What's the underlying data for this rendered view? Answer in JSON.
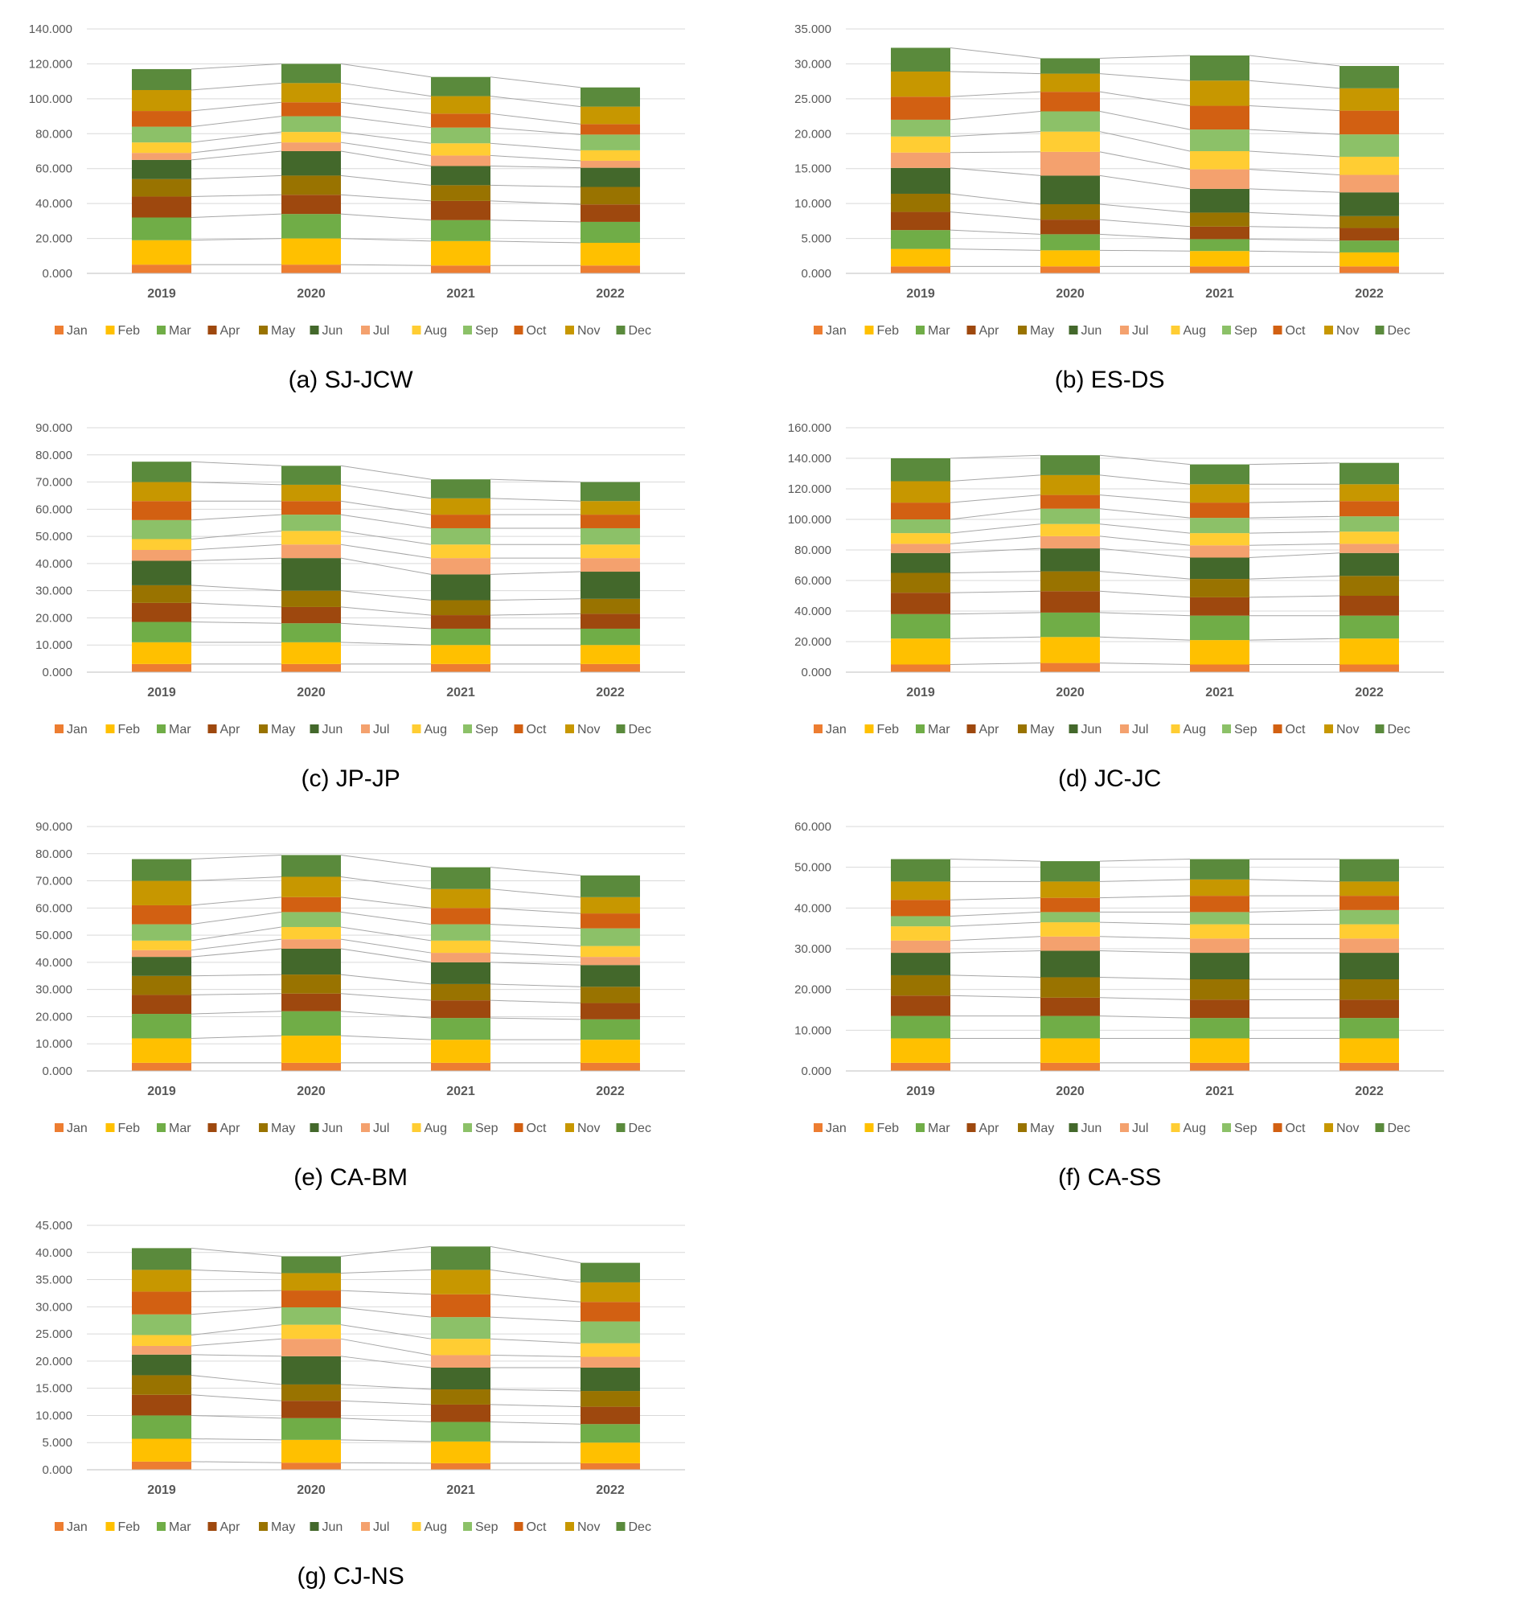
{
  "months": [
    "Jan",
    "Feb",
    "Mar",
    "Apr",
    "May",
    "Jun",
    "Jul",
    "Aug",
    "Sep",
    "Oct",
    "Nov",
    "Dec"
  ],
  "colors": [
    "#ED7D31",
    "#FFC000",
    "#70AD47",
    "#9E480E",
    "#997300",
    "#43682B",
    "#F4A16E",
    "#FFCD33",
    "#8CC168",
    "#D26012",
    "#C79700",
    "#5A8A3C"
  ],
  "chart_data": [
    {
      "type": "bar",
      "stacked": true,
      "caption": "(a) SJ-JCW",
      "categories": [
        "2019",
        "2020",
        "2021",
        "2022"
      ],
      "ylim": [
        0,
        140
      ],
      "yticks": [
        "0.000",
        "20.000",
        "40.000",
        "60.000",
        "80.000",
        "100.000",
        "120.000",
        "140.000"
      ],
      "series": [
        {
          "name": "Jan",
          "values": [
            5,
            5,
            4.5,
            4.5
          ]
        },
        {
          "name": "Feb",
          "values": [
            14,
            15,
            14,
            13
          ]
        },
        {
          "name": "Mar",
          "values": [
            13,
            14,
            12,
            12
          ]
        },
        {
          "name": "Apr",
          "values": [
            12,
            11,
            11,
            10
          ]
        },
        {
          "name": "May",
          "values": [
            10,
            11,
            9,
            10
          ]
        },
        {
          "name": "Jun",
          "values": [
            11,
            14,
            11,
            11
          ]
        },
        {
          "name": "Jul",
          "values": [
            4,
            5,
            6,
            4
          ]
        },
        {
          "name": "Aug",
          "values": [
            6,
            6,
            7,
            6
          ]
        },
        {
          "name": "Sep",
          "values": [
            9,
            9,
            9,
            9
          ]
        },
        {
          "name": "Oct",
          "values": [
            9,
            8,
            8,
            6
          ]
        },
        {
          "name": "Nov",
          "values": [
            12,
            11,
            10,
            10
          ]
        },
        {
          "name": "Dec",
          "values": [
            12,
            11,
            11,
            11
          ]
        }
      ]
    },
    {
      "type": "bar",
      "stacked": true,
      "caption": "(b) ES-DS",
      "categories": [
        "2019",
        "2020",
        "2021",
        "2022"
      ],
      "ylim": [
        0,
        35
      ],
      "yticks": [
        "0.000",
        "5.000",
        "10.000",
        "15.000",
        "20.000",
        "25.000",
        "30.000",
        "35.000"
      ],
      "series": [
        {
          "name": "Jan",
          "values": [
            1,
            1,
            1,
            1
          ]
        },
        {
          "name": "Feb",
          "values": [
            2.5,
            2.3,
            2.2,
            2
          ]
        },
        {
          "name": "Mar",
          "values": [
            2.7,
            2.3,
            1.7,
            1.7
          ]
        },
        {
          "name": "Apr",
          "values": [
            2.6,
            2.1,
            1.8,
            1.8
          ]
        },
        {
          "name": "May",
          "values": [
            2.6,
            2.2,
            2,
            1.7
          ]
        },
        {
          "name": "Jun",
          "values": [
            3.7,
            4.1,
            3.4,
            3.4
          ]
        },
        {
          "name": "Jul",
          "values": [
            2.2,
            3.4,
            2.8,
            2.5
          ]
        },
        {
          "name": "Aug",
          "values": [
            2.3,
            2.9,
            2.6,
            2.6
          ]
        },
        {
          "name": "Sep",
          "values": [
            2.4,
            2.9,
            3.1,
            3.2
          ]
        },
        {
          "name": "Oct",
          "values": [
            3.3,
            2.8,
            3.4,
            3.4
          ]
        },
        {
          "name": "Nov",
          "values": [
            3.6,
            2.6,
            3.6,
            3.2
          ]
        },
        {
          "name": "Dec",
          "values": [
            3.4,
            2.2,
            3.6,
            3.2
          ]
        }
      ]
    },
    {
      "type": "bar",
      "stacked": true,
      "caption": "(c) JP-JP",
      "categories": [
        "2019",
        "2020",
        "2021",
        "2022"
      ],
      "ylim": [
        0,
        90
      ],
      "yticks": [
        "0.000",
        "10.000",
        "20.000",
        "30.000",
        "40.000",
        "50.000",
        "60.000",
        "70.000",
        "80.000",
        "90.000"
      ],
      "series": [
        {
          "name": "Jan",
          "values": [
            3,
            3,
            3,
            3
          ]
        },
        {
          "name": "Feb",
          "values": [
            8,
            8,
            7,
            7
          ]
        },
        {
          "name": "Mar",
          "values": [
            7.5,
            7,
            6,
            6
          ]
        },
        {
          "name": "Apr",
          "values": [
            7,
            6,
            5,
            5.5
          ]
        },
        {
          "name": "May",
          "values": [
            6.5,
            6,
            5.5,
            5.5
          ]
        },
        {
          "name": "Jun",
          "values": [
            9,
            12,
            9.5,
            10
          ]
        },
        {
          "name": "Jul",
          "values": [
            4,
            5,
            6,
            5
          ]
        },
        {
          "name": "Aug",
          "values": [
            4,
            5,
            5,
            5
          ]
        },
        {
          "name": "Sep",
          "values": [
            7,
            6,
            6,
            6
          ]
        },
        {
          "name": "Oct",
          "values": [
            7,
            5,
            5,
            5
          ]
        },
        {
          "name": "Nov",
          "values": [
            7,
            6,
            6,
            5
          ]
        },
        {
          "name": "Dec",
          "values": [
            7.5,
            7,
            7,
            7
          ]
        }
      ]
    },
    {
      "type": "bar",
      "stacked": true,
      "caption": "(d) JC-JC",
      "categories": [
        "2019",
        "2020",
        "2021",
        "2022"
      ],
      "ylim": [
        0,
        160
      ],
      "yticks": [
        "0.000",
        "20.000",
        "40.000",
        "60.000",
        "80.000",
        "100.000",
        "120.000",
        "140.000",
        "160.000"
      ],
      "series": [
        {
          "name": "Jan",
          "values": [
            5,
            6,
            5,
            5
          ]
        },
        {
          "name": "Feb",
          "values": [
            17,
            17,
            16,
            17
          ]
        },
        {
          "name": "Mar",
          "values": [
            16,
            16,
            16,
            15
          ]
        },
        {
          "name": "Apr",
          "values": [
            14,
            14,
            12,
            13
          ]
        },
        {
          "name": "May",
          "values": [
            13,
            13,
            12,
            13
          ]
        },
        {
          "name": "Jun",
          "values": [
            13,
            15,
            14,
            15
          ]
        },
        {
          "name": "Jul",
          "values": [
            6,
            8,
            8,
            6
          ]
        },
        {
          "name": "Aug",
          "values": [
            7,
            8,
            8,
            8
          ]
        },
        {
          "name": "Sep",
          "values": [
            9,
            10,
            10,
            10
          ]
        },
        {
          "name": "Oct",
          "values": [
            11,
            9,
            10,
            10
          ]
        },
        {
          "name": "Nov",
          "values": [
            14,
            13,
            12,
            11
          ]
        },
        {
          "name": "Dec",
          "values": [
            15,
            13,
            13,
            14
          ]
        }
      ]
    },
    {
      "type": "bar",
      "stacked": true,
      "caption": "(e) CA-BM",
      "categories": [
        "2019",
        "2020",
        "2021",
        "2022"
      ],
      "ylim": [
        0,
        90
      ],
      "yticks": [
        "0.000",
        "10.000",
        "20.000",
        "30.000",
        "40.000",
        "50.000",
        "60.000",
        "70.000",
        "80.000",
        "90.000"
      ],
      "series": [
        {
          "name": "Jan",
          "values": [
            3,
            3,
            3,
            3
          ]
        },
        {
          "name": "Feb",
          "values": [
            9,
            10,
            8.5,
            8.5
          ]
        },
        {
          "name": "Mar",
          "values": [
            9,
            9,
            8,
            7.5
          ]
        },
        {
          "name": "Apr",
          "values": [
            7,
            6.5,
            6.5,
            6
          ]
        },
        {
          "name": "May",
          "values": [
            7,
            7,
            6,
            6
          ]
        },
        {
          "name": "Jun",
          "values": [
            7,
            9.5,
            8,
            8
          ]
        },
        {
          "name": "Jul",
          "values": [
            2.5,
            3.5,
            3.5,
            3
          ]
        },
        {
          "name": "Aug",
          "values": [
            3.5,
            4.5,
            4.5,
            4
          ]
        },
        {
          "name": "Sep",
          "values": [
            6,
            5.5,
            6,
            6.5
          ]
        },
        {
          "name": "Oct",
          "values": [
            7,
            5.5,
            6,
            5.5
          ]
        },
        {
          "name": "Nov",
          "values": [
            9,
            7.5,
            7,
            6
          ]
        },
        {
          "name": "Dec",
          "values": [
            8,
            8,
            8,
            8
          ]
        }
      ]
    },
    {
      "type": "bar",
      "stacked": true,
      "caption": "(f) CA-SS",
      "categories": [
        "2019",
        "2020",
        "2021",
        "2022"
      ],
      "ylim": [
        0,
        60
      ],
      "yticks": [
        "0.000",
        "10.000",
        "20.000",
        "30.000",
        "40.000",
        "50.000",
        "60.000"
      ],
      "series": [
        {
          "name": "Jan",
          "values": [
            2,
            2,
            2,
            2
          ]
        },
        {
          "name": "Feb",
          "values": [
            6,
            6,
            6,
            6
          ]
        },
        {
          "name": "Mar",
          "values": [
            5.5,
            5.5,
            5,
            5
          ]
        },
        {
          "name": "Apr",
          "values": [
            5,
            4.5,
            4.5,
            4.5
          ]
        },
        {
          "name": "May",
          "values": [
            5,
            5,
            5,
            5
          ]
        },
        {
          "name": "Jun",
          "values": [
            5.5,
            6.5,
            6.5,
            6.5
          ]
        },
        {
          "name": "Jul",
          "values": [
            3,
            3.5,
            3.5,
            3.5
          ]
        },
        {
          "name": "Aug",
          "values": [
            3.5,
            3.5,
            3.5,
            3.5
          ]
        },
        {
          "name": "Sep",
          "values": [
            2.5,
            2.5,
            3,
            3.5
          ]
        },
        {
          "name": "Oct",
          "values": [
            4,
            3.5,
            4,
            3.5
          ]
        },
        {
          "name": "Nov",
          "values": [
            4.5,
            4,
            4,
            3.5
          ]
        },
        {
          "name": "Dec",
          "values": [
            5.5,
            5,
            5,
            5.5
          ]
        }
      ]
    },
    {
      "type": "bar",
      "stacked": true,
      "caption": "(g) CJ-NS",
      "categories": [
        "2019",
        "2020",
        "2021",
        "2022"
      ],
      "ylim": [
        0,
        45
      ],
      "yticks": [
        "0.000",
        "5.000",
        "10.000",
        "15.000",
        "20.000",
        "25.000",
        "30.000",
        "35.000",
        "40.000",
        "45.000"
      ],
      "series": [
        {
          "name": "Jan",
          "values": [
            1.5,
            1.3,
            1.2,
            1.2
          ]
        },
        {
          "name": "Feb",
          "values": [
            4.2,
            4.2,
            4,
            3.8
          ]
        },
        {
          "name": "Mar",
          "values": [
            4.3,
            4,
            3.6,
            3.4
          ]
        },
        {
          "name": "Apr",
          "values": [
            3.8,
            3.2,
            3.2,
            3.2
          ]
        },
        {
          "name": "May",
          "values": [
            3.6,
            3,
            2.8,
            2.9
          ]
        },
        {
          "name": "Jun",
          "values": [
            3.8,
            5.2,
            4,
            4.3
          ]
        },
        {
          "name": "Jul",
          "values": [
            1.6,
            3.2,
            2.3,
            2
          ]
        },
        {
          "name": "Aug",
          "values": [
            2,
            2.6,
            3,
            2.5
          ]
        },
        {
          "name": "Sep",
          "values": [
            3.8,
            3.2,
            4,
            4
          ]
        },
        {
          "name": "Oct",
          "values": [
            4.2,
            3.1,
            4.2,
            3.6
          ]
        },
        {
          "name": "Nov",
          "values": [
            4,
            3.2,
            4.5,
            3.6
          ]
        },
        {
          "name": "Dec",
          "values": [
            4,
            3.1,
            4.3,
            3.6
          ]
        }
      ]
    }
  ]
}
